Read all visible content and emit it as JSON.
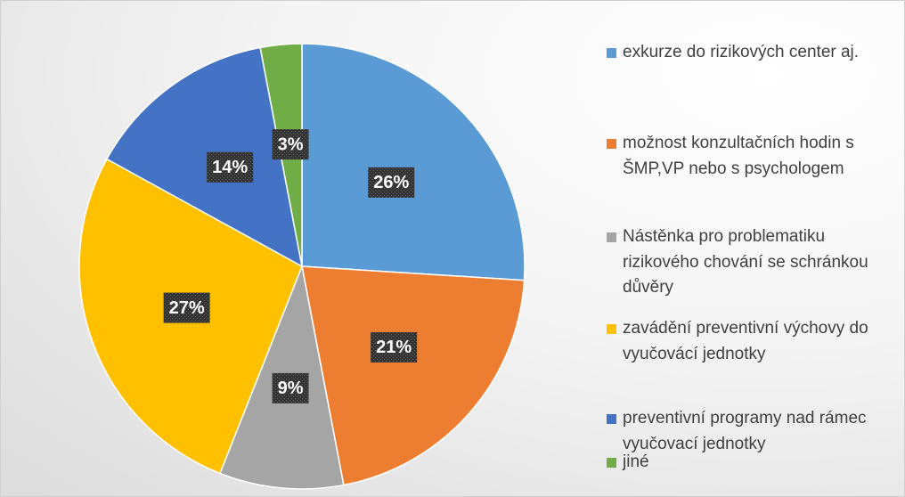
{
  "chart_data": {
    "type": "pie",
    "categories": [
      "exkurze do rizikových center aj.",
      "možnost konzultačních hodin s ŠMP,VP nebo s psychologem",
      "Nástěnka pro problematiku rizikového chování se schránkou důvěry",
      "zavádění preventivní výchovy do vyučovácí jednotky",
      "preventivní programy nad rámec vyučovací jednotky",
      "jiné"
    ],
    "values": [
      26,
      21,
      9,
      27,
      14,
      3
    ],
    "value_labels": [
      "26%",
      "21%",
      "9%",
      "27%",
      "14%",
      "3%"
    ],
    "colors": [
      "#5b9bd5",
      "#ed7d31",
      "#a5a5a5",
      "#ffc000",
      "#4472c4",
      "#70ad47"
    ],
    "legend": "right"
  }
}
